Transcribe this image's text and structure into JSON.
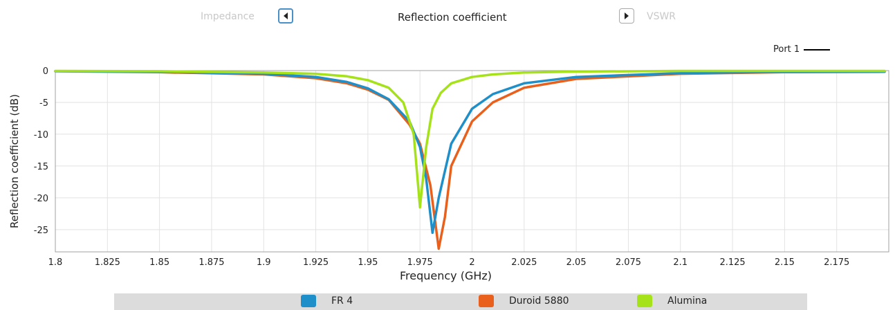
{
  "nav": {
    "prev_label": "Impedance",
    "current_label": "Reflection coefficient",
    "next_label": "VSWR",
    "prev_icon": "triangle-left-icon",
    "next_icon": "triangle-right-icon"
  },
  "port_legend": {
    "label": "Port 1"
  },
  "chart_data": {
    "type": "line",
    "xlabel": "Frequency (GHz)",
    "ylabel": "Reflection coefficient (dB)",
    "xlim": [
      1.8,
      2.2
    ],
    "ylim": [
      -28.5,
      0
    ],
    "x_ticks": [
      "1.8",
      "1.825",
      "1.85",
      "1.875",
      "1.9",
      "1.925",
      "1.95",
      "1.975",
      "2",
      "2.025",
      "2.05",
      "2.075",
      "2.1",
      "2.125",
      "2.15",
      "2.175"
    ],
    "y_ticks": [
      "0",
      "-5",
      "-10",
      "-15",
      "-20",
      "-25"
    ],
    "grid": true,
    "legend_placement": "bottom",
    "series": [
      {
        "name": "FR 4",
        "color": "#1f8fc9",
        "x": [
          1.8,
          1.85,
          1.9,
          1.925,
          1.94,
          1.95,
          1.96,
          1.97,
          1.975,
          1.978,
          1.981,
          1.984,
          1.99,
          2.0,
          2.01,
          2.025,
          2.05,
          2.1,
          2.15,
          2.198
        ],
        "y": [
          -0.1,
          -0.2,
          -0.5,
          -1.0,
          -1.8,
          -2.8,
          -4.5,
          -8.0,
          -12.0,
          -17.0,
          -25.5,
          -20.0,
          -11.5,
          -6.0,
          -3.7,
          -2.0,
          -1.0,
          -0.4,
          -0.2,
          -0.15
        ]
      },
      {
        "name": "Duroid 5880",
        "color": "#e8601c",
        "x": [
          1.8,
          1.85,
          1.9,
          1.925,
          1.94,
          1.95,
          1.96,
          1.97,
          1.975,
          1.98,
          1.984,
          1.987,
          1.99,
          2.0,
          2.01,
          2.025,
          2.05,
          2.1,
          2.15,
          2.198
        ],
        "y": [
          -0.1,
          -0.25,
          -0.6,
          -1.2,
          -2.0,
          -3.0,
          -4.6,
          -8.5,
          -11.5,
          -18.0,
          -28.0,
          -23.0,
          -15.0,
          -8.0,
          -5.0,
          -2.7,
          -1.3,
          -0.5,
          -0.25,
          -0.2
        ]
      },
      {
        "name": "Alumina",
        "color": "#a6e21a",
        "x": [
          1.8,
          1.85,
          1.9,
          1.925,
          1.94,
          1.95,
          1.96,
          1.967,
          1.972,
          1.975,
          1.978,
          1.981,
          1.985,
          1.99,
          2.0,
          2.01,
          2.025,
          2.05,
          2.1,
          2.198
        ],
        "y": [
          -0.05,
          -0.1,
          -0.3,
          -0.5,
          -0.9,
          -1.5,
          -2.7,
          -5.0,
          -10.0,
          -21.5,
          -12.0,
          -6.0,
          -3.5,
          -2.0,
          -1.0,
          -0.6,
          -0.3,
          -0.15,
          -0.05,
          -0.05
        ]
      }
    ]
  }
}
